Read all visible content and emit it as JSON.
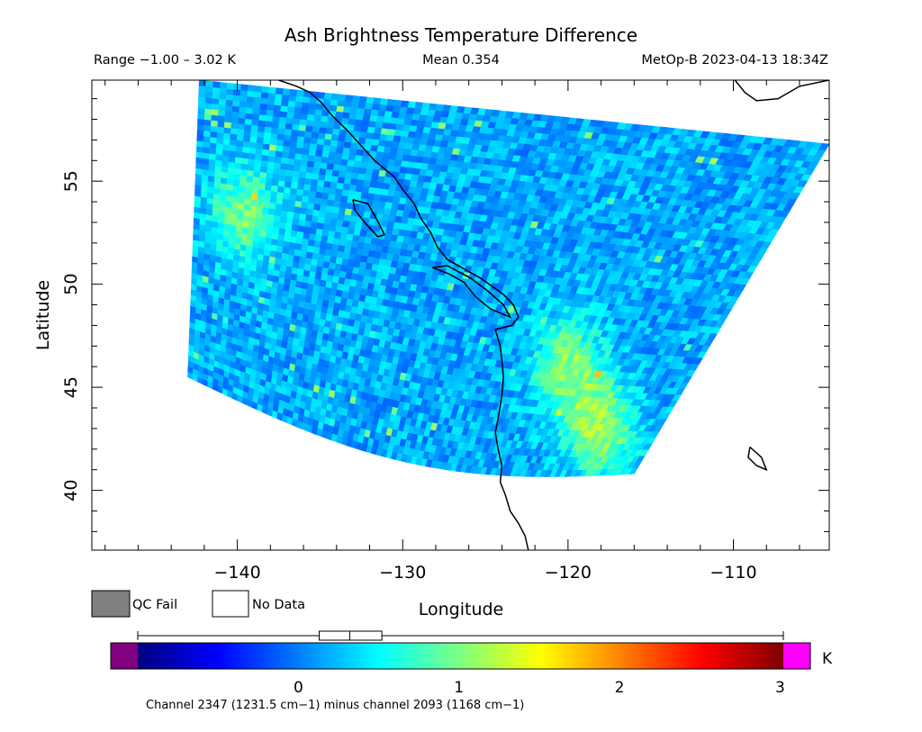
{
  "chart_data": {
    "type": "heatmap",
    "title": "Ash Brightness Temperature Difference",
    "range_text": "Range −1.00 – 3.02 K",
    "mean_text": "Mean 0.354",
    "source_text": "MetOp-B 2023-04-13 18:34Z",
    "xlabel": "Longitude",
    "ylabel": "Latitude",
    "x_ticks": [
      -140,
      -130,
      -120,
      -110
    ],
    "y_ticks": [
      40,
      45,
      50,
      55
    ],
    "xlim": [
      -148.8,
      -104.2
    ],
    "ylim": [
      37.1,
      59.9
    ],
    "swath_corners": {
      "west_top": [
        -142.3,
        59.9
      ],
      "west_bottom": [
        -143.0,
        45.5
      ],
      "south_east": [
        -116.0,
        40.8
      ],
      "east_top": [
        -104.2,
        56.8
      ]
    },
    "field_mean": 0.354,
    "field_min": -1.0,
    "field_max": 3.02,
    "warm_regions": [
      {
        "lon": -139.5,
        "lat": 53.5,
        "value": 0.95
      },
      {
        "lon": -120.0,
        "lat": 46.0,
        "value": 1.0
      },
      {
        "lon": -118.0,
        "lat": 43.0,
        "value": 1.1
      }
    ],
    "legend": {
      "qc_fail": "QC Fail",
      "no_data": "No Data"
    },
    "colorbar": {
      "ticks": [
        0,
        1,
        2,
        3
      ],
      "min": -1.0,
      "max": 3.02,
      "unit": "K",
      "box_q1": 0.13,
      "box_median": 0.32,
      "box_q3": 0.52,
      "whisker_low": -1.0,
      "whisker_high": 3.02,
      "under_color": "#800080",
      "over_color": "#ff00ff",
      "colors": [
        "#00007f",
        "#0000ff",
        "#007fff",
        "#00ffff",
        "#7fff7f",
        "#ffff00",
        "#ff7f00",
        "#ff0000",
        "#7f0000"
      ]
    },
    "footnote": "Channel 2347 (1231.5 cm−1) minus channel 2093 (1168 cm−1)"
  }
}
